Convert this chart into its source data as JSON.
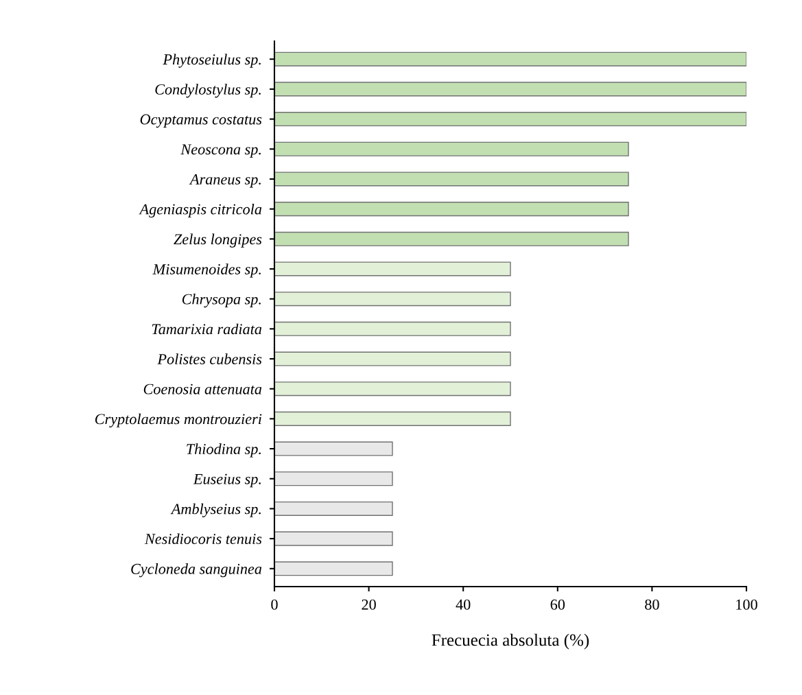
{
  "chart_data": {
    "type": "bar",
    "orientation": "horizontal",
    "xlabel": "Frecuecia absoluta (%)",
    "categories": [
      "Phytoseiulus sp.",
      "Condylostylus sp.",
      "Ocyptamus costatus",
      "Neoscona sp.",
      "Araneus sp.",
      "Ageniaspis citricola",
      "Zelus longipes",
      "Misumenoides sp.",
      "Chrysopa sp.",
      "Tamarixia radiata",
      "Polistes cubensis",
      "Coenosia attenuata",
      "Cryptolaemus montrouzieri",
      "Thiodina sp.",
      "Euseius sp.",
      "Amblyseius sp.",
      "Nesidiocoris tenuis",
      "Cycloneda sanguinea"
    ],
    "values": [
      100,
      100,
      100,
      75,
      75,
      75,
      75,
      50,
      50,
      50,
      50,
      50,
      50,
      25,
      25,
      25,
      25,
      25
    ],
    "colors": [
      "#c2dfb2",
      "#c2dfb2",
      "#c2dfb2",
      "#c2dfb2",
      "#c2dfb2",
      "#c2dfb2",
      "#c2dfb2",
      "#e2f0d8",
      "#e2f0d8",
      "#e2f0d8",
      "#e2f0d8",
      "#e2f0d8",
      "#e2f0d8",
      "#e8e8e8",
      "#e8e8e8",
      "#e8e8e8",
      "#e8e8e8",
      "#e8e8e8"
    ],
    "xlim": [
      0,
      100
    ],
    "xticks": [
      0,
      20,
      40,
      60,
      80,
      100
    ],
    "grid": false,
    "legend": false
  }
}
